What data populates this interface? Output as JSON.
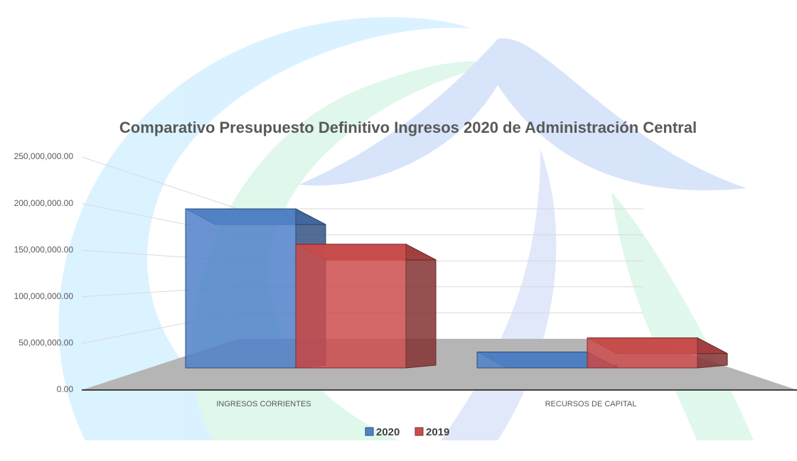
{
  "chart_data": {
    "type": "bar3d",
    "title": "Comparativo Presupuesto Definitivo Ingresos 2020 de Administración Central",
    "categories": [
      "INGRESOS CORRIENTES",
      "RECURSOS DE CAPITAL"
    ],
    "series": [
      {
        "name": "2020",
        "color": "#4f81c9",
        "values": [
          180000000,
          18000000
        ]
      },
      {
        "name": "2019",
        "color": "#cc4c4c",
        "values": [
          140000000,
          34000000
        ]
      }
    ],
    "ylim": [
      0,
      250000000
    ],
    "yticks": [
      {
        "value": 0,
        "label": "0.00"
      },
      {
        "value": 50000000,
        "label": "50,000,000.00"
      },
      {
        "value": 100000000,
        "label": "100,000,000.00"
      },
      {
        "value": 150000000,
        "label": "150,000,000.00"
      },
      {
        "value": 200000000,
        "label": "200,000,000.00"
      },
      {
        "value": 250000000,
        "label": "250,000,000.00"
      }
    ],
    "grid": true,
    "legend": "bottom"
  }
}
